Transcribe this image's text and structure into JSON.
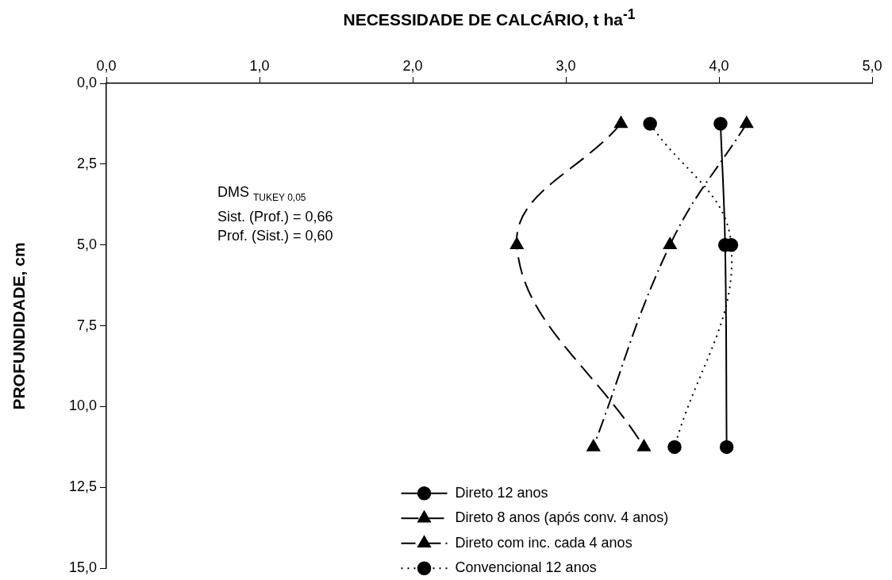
{
  "chart_data": {
    "type": "line",
    "title": "NECESSIDADE DE CALCÁRIO, t ha$^{-1}$",
    "ylabel": "PROFUNDIDADE, cm",
    "annotations": [
      "DMS $_{TUKEY 0,05}$",
      "Sist. (Prof.) = 0,66",
      "Prof. (Sist.) = 0,60"
    ],
    "series": [
      {
        "name": "Direto 12 anos",
        "color": "#000000",
        "marker": "circle",
        "line_style": "solid",
        "x": [
          4.01,
          4.04,
          4.05
        ],
        "values": [
          1.25,
          5.0,
          11.25
        ]
      },
      {
        "name": "Direto 8 anos (após conv. 4 anos)",
        "color": "#000000",
        "marker": "triangle",
        "line_style": "dashed",
        "x": [
          3.36,
          2.68,
          3.51
        ],
        "values": [
          1.25,
          5.0,
          11.25
        ]
      },
      {
        "name": "Direto com inc. cada 4 anos",
        "color": "#000000",
        "marker": "triangle",
        "line_style": "dashdot",
        "x": [
          4.18,
          3.68,
          3.18
        ],
        "values": [
          1.25,
          5.0,
          11.25
        ]
      },
      {
        "name": "Convencional 12 anos",
        "color": "#000000",
        "marker": "circle",
        "line_style": "dotted",
        "x": [
          3.55,
          4.08,
          3.71
        ],
        "values": [
          1.25,
          5.0,
          11.25
        ]
      }
    ],
    "xlim": [
      0,
      5
    ],
    "xticks": [
      {
        "value": 0,
        "label": "0,0"
      },
      {
        "value": 1,
        "label": "1,0"
      },
      {
        "value": 2,
        "label": "2,0"
      },
      {
        "value": 3,
        "label": "3,0"
      },
      {
        "value": 4,
        "label": "4,0"
      },
      {
        "value": 5,
        "label": "5,0"
      }
    ],
    "ylim": [
      15,
      0
    ],
    "yticks": [
      {
        "value": 0,
        "label": "0,0"
      },
      {
        "value": 2.5,
        "label": "2,5"
      },
      {
        "value": 5,
        "label": "5,0"
      },
      {
        "value": 7.5,
        "label": "7,5"
      },
      {
        "value": 10,
        "label": "10,0"
      },
      {
        "value": 12.5,
        "label": "12,5"
      },
      {
        "value": 15,
        "label": "15,0"
      }
    ],
    "grid": false,
    "legend": "bottom"
  }
}
